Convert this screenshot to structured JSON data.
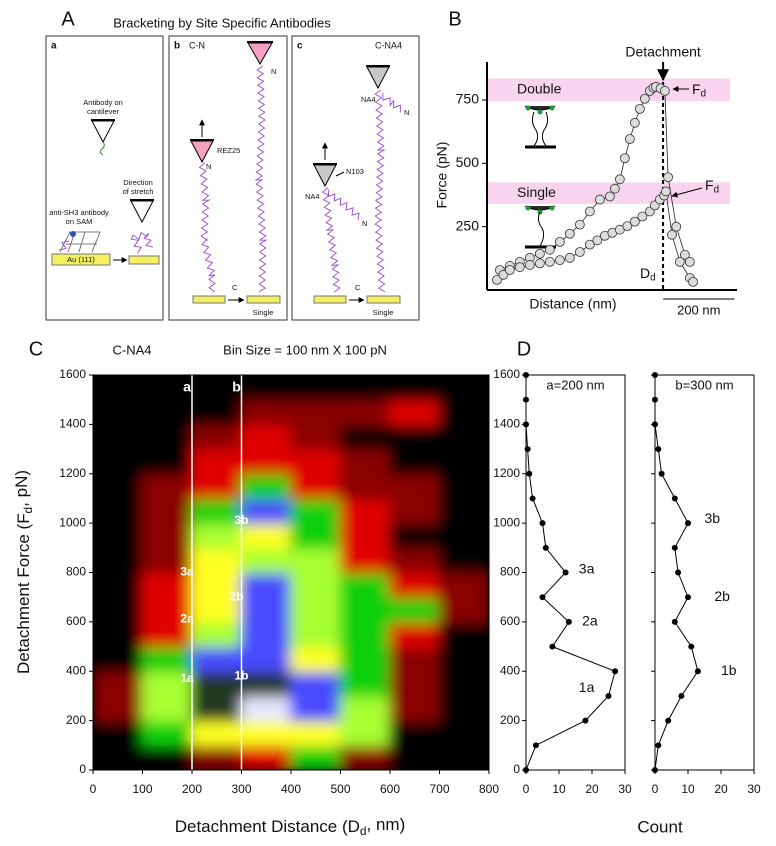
{
  "figure": {
    "panel_labels": [
      "A",
      "B",
      "C",
      "D"
    ]
  },
  "diagram": {
    "title": "Bracketing by Site Specific Antibodies",
    "a": {
      "label": "a",
      "antibody_cantilever": [
        "Antibody on",
        "cantilever"
      ],
      "direction": [
        "Direction",
        "of stretch"
      ],
      "antibody_sam": [
        "anti-SH3 antibody",
        "on SAM"
      ],
      "substrate": "Au (111)"
    },
    "b": {
      "label": "b",
      "name": "C-N",
      "rez": "REZ25",
      "n_left": "N",
      "n_right": "N",
      "c_left": "C",
      "state": "Single"
    },
    "c": {
      "label": "c",
      "name": "C-NA4",
      "na4_left": "NA4",
      "n103": "N103",
      "n_left": "N",
      "na4_right": "NA4",
      "n_right": "N",
      "c_left": "C",
      "state": "Single"
    }
  },
  "chart_data": [
    {
      "type": "line",
      "x_label": "Distance (nm)",
      "y_label": "Force (pN)",
      "xlim": [
        0,
        700
      ],
      "ylim": [
        0,
        900
      ],
      "yticks": [
        250,
        500,
        750
      ],
      "series": [
        {
          "name": "Double",
          "color": "#dcdcdc",
          "x": [
            36,
            64,
            92,
            120,
            148,
            176,
            204,
            232,
            260,
            288,
            316,
            344,
            358,
            372,
            386,
            400,
            414,
            428,
            442,
            456,
            466,
            473,
            486,
            498,
            507,
            530,
            554,
            568
          ],
          "values": [
            79,
            95,
            111,
            127,
            143,
            159,
            190,
            222,
            258,
            310,
            357,
            369,
            400,
            437,
            520,
            596,
            660,
            715,
            755,
            786,
            798,
            802,
            796,
            786,
            445,
            250,
            139,
            111
          ]
        },
        {
          "name": "Single",
          "color": "#dcdcdc",
          "x": [
            28,
            46,
            64,
            92,
            120,
            148,
            176,
            204,
            232,
            260,
            288,
            309,
            330,
            351,
            372,
            393,
            414,
            435,
            456,
            470,
            484,
            496,
            501,
            518,
            540,
            568,
            577
          ],
          "values": [
            40,
            60,
            79,
            90,
            99,
            105,
            111,
            118,
            127,
            150,
            179,
            196,
            214,
            226,
            238,
            252,
            270,
            290,
            310,
            334,
            357,
            373,
            389,
            218,
            111,
            48,
            32
          ]
        }
      ],
      "bands": [
        {
          "from": 745,
          "to": 835
        },
        {
          "from": 340,
          "to": 425
        }
      ],
      "detachment_x": 493,
      "detachment_label": "Detachment",
      "force_label": [
        "F",
        "d"
      ],
      "distance_label": [
        "D",
        "d"
      ],
      "scale_bar": {
        "value": 200,
        "label": "200 nm"
      }
    },
    {
      "type": "heatmap",
      "title": "C-NA4",
      "subtitle": "Bin Size = 100  nm X 100 pN",
      "x_label": [
        "Detachment Distance (D",
        "d",
        ", nm)"
      ],
      "y_label": [
        "Detachment Force (F",
        "d",
        ", pN)"
      ],
      "xlim": [
        0,
        800
      ],
      "ylim": [
        0,
        1600
      ],
      "xticks": [
        0,
        100,
        200,
        300,
        400,
        500,
        600,
        700,
        800
      ],
      "yticks": [
        0,
        200,
        400,
        600,
        800,
        1000,
        1200,
        1400,
        1600
      ],
      "x_edges": [
        0,
        100,
        200,
        300,
        400,
        500,
        600,
        700,
        800
      ],
      "y_edges": [
        0,
        100,
        200,
        300,
        400,
        500,
        600,
        700,
        800,
        900,
        1000,
        1100,
        1200,
        1300,
        1400,
        1500,
        1600
      ],
      "colors": [
        "#000000",
        "#8b0000",
        "#e00000",
        "#10d010",
        "#a8ff30",
        "#ffff20",
        "#4a4aff",
        "#e8e8ff",
        "#203820"
      ],
      "z": [
        [
          0,
          0,
          1,
          2,
          3,
          1,
          0,
          0
        ],
        [
          0,
          3,
          5,
          5,
          5,
          4,
          0,
          0
        ],
        [
          1,
          4,
          8,
          7,
          6,
          4,
          1,
          0
        ],
        [
          1,
          4,
          8,
          8,
          6,
          3,
          1,
          0
        ],
        [
          0,
          3,
          6,
          6,
          5,
          3,
          1,
          0
        ],
        [
          0,
          2,
          4,
          6,
          4,
          3,
          2,
          0
        ],
        [
          0,
          2,
          5,
          6,
          4,
          3,
          3,
          1
        ],
        [
          0,
          2,
          5,
          6,
          4,
          3,
          2,
          1
        ],
        [
          0,
          1,
          5,
          4,
          4,
          2,
          1,
          0
        ],
        [
          0,
          1,
          4,
          5,
          3,
          2,
          0,
          0
        ],
        [
          0,
          1,
          3,
          6,
          3,
          2,
          1,
          0
        ],
        [
          0,
          1,
          2,
          3,
          2,
          1,
          1,
          0
        ],
        [
          0,
          0,
          2,
          2,
          2,
          1,
          0,
          0
        ],
        [
          0,
          0,
          1,
          2,
          1,
          0,
          0,
          0
        ],
        [
          0,
          0,
          0,
          1,
          1,
          1,
          2,
          0
        ],
        [
          0,
          0,
          0,
          0,
          0,
          0,
          0,
          0
        ]
      ],
      "lines": [
        {
          "label": "a",
          "x": 200
        },
        {
          "label": "b",
          "x": 300
        }
      ],
      "point_labels": [
        {
          "text": "1a",
          "x": 190,
          "y": 370
        },
        {
          "text": "1b",
          "x": 300,
          "y": 380
        },
        {
          "text": "2a",
          "x": 190,
          "y": 610
        },
        {
          "text": "2b",
          "x": 290,
          "y": 700
        },
        {
          "text": "3a",
          "x": 190,
          "y": 800
        },
        {
          "text": "3b",
          "x": 300,
          "y": 1010
        }
      ]
    },
    {
      "type": "profile",
      "title": "a=200 nm",
      "x_label": "Count",
      "xlim": [
        0,
        30
      ],
      "xticks": [
        0,
        10,
        20,
        30
      ],
      "ylim": [
        0,
        1600
      ],
      "yticks": [
        0,
        200,
        400,
        600,
        800,
        1000,
        1200,
        1400,
        1600
      ],
      "ytick_labels": true,
      "y": [
        0,
        100,
        200,
        300,
        400,
        500,
        600,
        700,
        800,
        900,
        1000,
        1100,
        1200,
        1300,
        1400,
        1500,
        1600
      ],
      "values": [
        0,
        3,
        18,
        25,
        27,
        8,
        13,
        5,
        12,
        6,
        5,
        2,
        1,
        0.5,
        0,
        0,
        0
      ],
      "point_labels": [
        {
          "text": "1a",
          "x": 16,
          "y": 330
        },
        {
          "text": "2a",
          "x": 17,
          "y": 600
        },
        {
          "text": "3a",
          "x": 16,
          "y": 810
        }
      ]
    },
    {
      "type": "profile",
      "title": "b=300 nm",
      "xlim": [
        0,
        30
      ],
      "xticks": [
        0,
        10,
        20,
        30
      ],
      "ylim": [
        0,
        1600
      ],
      "yticks": [
        0,
        200,
        400,
        600,
        800,
        1000,
        1200,
        1400,
        1600
      ],
      "ytick_labels": false,
      "y": [
        0,
        100,
        200,
        300,
        400,
        500,
        600,
        700,
        800,
        900,
        1000,
        1100,
        1200,
        1300,
        1400,
        1500,
        1600
      ],
      "values": [
        0,
        1,
        4,
        8,
        13,
        11,
        6,
        10,
        7,
        6,
        10,
        6,
        2,
        1,
        0,
        0,
        0
      ],
      "point_labels": [
        {
          "text": "1b",
          "x": 20,
          "y": 400
        },
        {
          "text": "2b",
          "x": 18,
          "y": 700
        },
        {
          "text": "3b",
          "x": 15,
          "y": 1016
        }
      ]
    }
  ]
}
